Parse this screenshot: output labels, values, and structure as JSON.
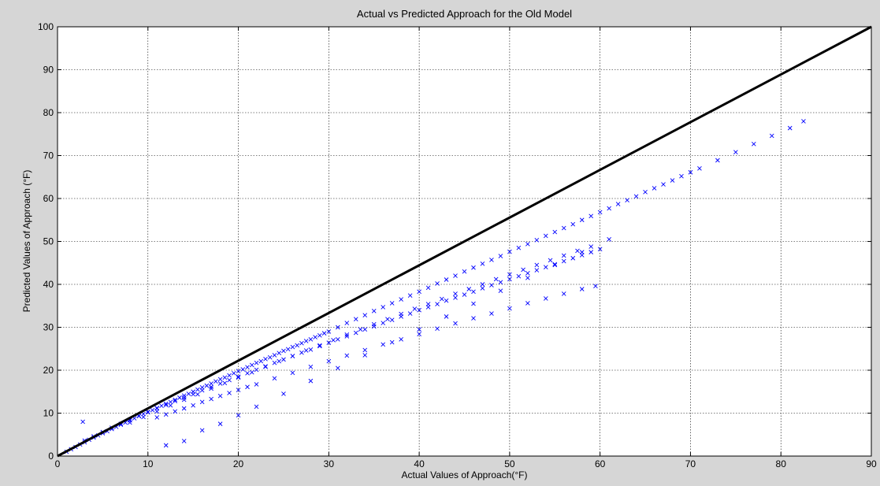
{
  "chart_data": {
    "type": "scatter",
    "title": "Actual vs Predicted Approach for the Old Model",
    "xlabel": "Actual Values of Approach(°F)",
    "ylabel": "Predicted Values of Approach (°F)",
    "xlim": [
      0,
      90
    ],
    "ylim": [
      0,
      100
    ],
    "xticks": [
      "0",
      "10",
      "20",
      "30",
      "40",
      "50",
      "60",
      "70",
      "80",
      "90"
    ],
    "yticks": [
      "0",
      "10",
      "20",
      "30",
      "40",
      "50",
      "60",
      "70",
      "80",
      "90",
      "100"
    ],
    "grid": true,
    "marker": "x",
    "marker_color": "#0000ff",
    "reference_line": {
      "x": [
        0,
        90
      ],
      "y": [
        0,
        100
      ],
      "color": "#000000"
    },
    "series": [
      {
        "x": [
          1,
          1.5,
          2,
          2.5,
          3,
          3.5,
          4,
          4.5,
          5,
          5.5,
          6,
          6.5,
          7,
          7.5,
          8,
          8.5,
          9,
          9.5,
          10,
          10.5,
          11,
          11.5,
          12,
          12.5,
          13,
          13.5,
          14,
          14.5,
          15,
          15.5,
          16,
          16.5,
          17,
          17.5,
          18,
          18.5,
          19,
          19.5,
          20,
          20.5,
          21,
          21.5,
          22,
          22.5,
          23,
          23.5,
          24,
          24.5,
          25,
          25.5,
          26,
          26.5,
          27,
          27.5,
          28,
          28.5,
          29,
          29.5,
          30,
          31,
          32,
          33,
          34,
          35,
          36,
          37,
          38,
          39,
          40,
          41,
          42,
          43,
          44,
          45,
          46,
          47,
          48,
          49,
          50,
          51,
          52,
          53,
          54,
          55,
          56,
          57,
          58,
          59,
          60,
          61,
          62,
          63,
          64,
          65,
          66,
          67,
          68,
          69,
          70,
          71,
          73,
          75,
          77,
          79,
          81,
          82.5,
          3,
          4,
          5,
          6,
          7,
          8,
          9,
          10,
          11,
          12,
          13,
          14,
          15,
          16,
          17,
          18,
          19,
          20,
          21,
          22,
          23,
          24,
          25,
          26,
          27,
          28,
          29,
          30,
          31,
          32,
          33,
          34,
          35,
          36,
          37,
          38,
          39,
          40,
          41,
          42,
          43,
          44,
          45,
          46,
          47,
          48,
          49,
          50,
          51,
          52,
          53,
          54,
          55,
          56,
          57,
          58,
          59,
          60,
          2.8,
          11,
          12,
          13,
          14,
          15,
          16,
          17,
          18,
          19,
          20,
          21,
          22,
          24,
          26,
          28,
          30,
          32,
          34,
          36,
          38,
          40,
          42,
          44,
          46,
          48,
          50,
          52,
          54,
          56,
          58,
          59.5,
          12,
          14,
          16,
          18,
          20,
          22,
          25,
          28,
          31,
          34,
          37,
          40,
          43,
          46,
          49,
          52,
          55,
          58,
          8,
          9.5,
          11,
          12.5,
          14,
          15.5,
          17,
          18.5,
          20,
          21.5,
          23,
          24.5,
          26,
          27.5,
          29,
          30.5,
          32,
          33.5,
          35,
          36.5,
          38,
          39.5,
          41,
          42.5,
          44,
          45.5,
          47,
          48.5,
          50,
          51.5,
          53,
          54.5,
          56,
          57.5,
          59,
          61
        ],
        "y": [
          1,
          1.6,
          2.1,
          2.7,
          3.2,
          3.8,
          4.3,
          4.8,
          5.3,
          5.8,
          6.3,
          6.8,
          7.3,
          7.8,
          8.3,
          8.8,
          9.3,
          9.8,
          10.3,
          10.7,
          11.2,
          11.7,
          12.2,
          12.6,
          13.1,
          13.6,
          14.1,
          14.5,
          15,
          15.5,
          16,
          16.4,
          16.9,
          17.4,
          17.9,
          18.3,
          18.8,
          19.3,
          19.8,
          20.2,
          20.7,
          21.2,
          21.7,
          22.1,
          22.6,
          23,
          23.5,
          24,
          24.5,
          24.9,
          25.4,
          25.8,
          26.3,
          26.8,
          27.2,
          27.7,
          28.1,
          28.6,
          29,
          30,
          31,
          31.9,
          32.8,
          33.8,
          34.7,
          35.6,
          36.5,
          37.4,
          38.3,
          39.2,
          40.2,
          41.1,
          42,
          43,
          43.9,
          44.8,
          45.7,
          46.6,
          47.6,
          48.5,
          49.4,
          50.3,
          51.3,
          52.2,
          53.1,
          54,
          55,
          55.9,
          56.8,
          57.7,
          58.7,
          59.6,
          60.5,
          61.5,
          62.4,
          63.3,
          64.2,
          65.2,
          66.1,
          67,
          68.9,
          70.8,
          72.7,
          74.6,
          76.4,
          78,
          3.6,
          4.6,
          5.6,
          6.6,
          7.5,
          8.5,
          9.4,
          10.2,
          11.1,
          11.9,
          12.8,
          13.6,
          14.4,
          15.3,
          16.1,
          16.9,
          17.7,
          18.5,
          19.3,
          20.1,
          20.9,
          21.7,
          22.5,
          23.3,
          24.1,
          24.8,
          25.6,
          26.4,
          27.2,
          27.9,
          28.7,
          29.5,
          30.2,
          31,
          31.7,
          32.5,
          33.2,
          34,
          34.7,
          35.4,
          36.2,
          36.9,
          37.6,
          38.3,
          39.1,
          39.8,
          40.5,
          41.2,
          41.9,
          42.6,
          43.3,
          44,
          44.7,
          45.4,
          46.1,
          46.8,
          47.5,
          48.2,
          8,
          9,
          9.7,
          10.4,
          11.1,
          11.8,
          12.6,
          13.3,
          14,
          14.7,
          15.4,
          16.1,
          16.7,
          18.1,
          19.4,
          20.8,
          22.1,
          23.4,
          24.7,
          26,
          27.2,
          28.4,
          29.7,
          30.9,
          32.1,
          33.2,
          34.4,
          35.6,
          36.7,
          37.8,
          38.9,
          39.6,
          2.5,
          3.5,
          6,
          7.5,
          9.5,
          11.5,
          14.5,
          17.5,
          20.5,
          23.5,
          26.5,
          29.5,
          32.5,
          35.5,
          38.5,
          41.5,
          44.5,
          47.5,
          7.8,
          9.1,
          10.4,
          11.8,
          13.1,
          14.4,
          15.7,
          17,
          18.3,
          19.5,
          20.8,
          22.1,
          23.3,
          24.6,
          25.8,
          27,
          28.3,
          29.5,
          30.7,
          31.9,
          33.1,
          34.3,
          35.4,
          36.6,
          37.8,
          38.9,
          40,
          41.2,
          42.3,
          43.4,
          44.5,
          45.6,
          46.7,
          47.8,
          48.8,
          50.5
        ]
      }
    ]
  }
}
